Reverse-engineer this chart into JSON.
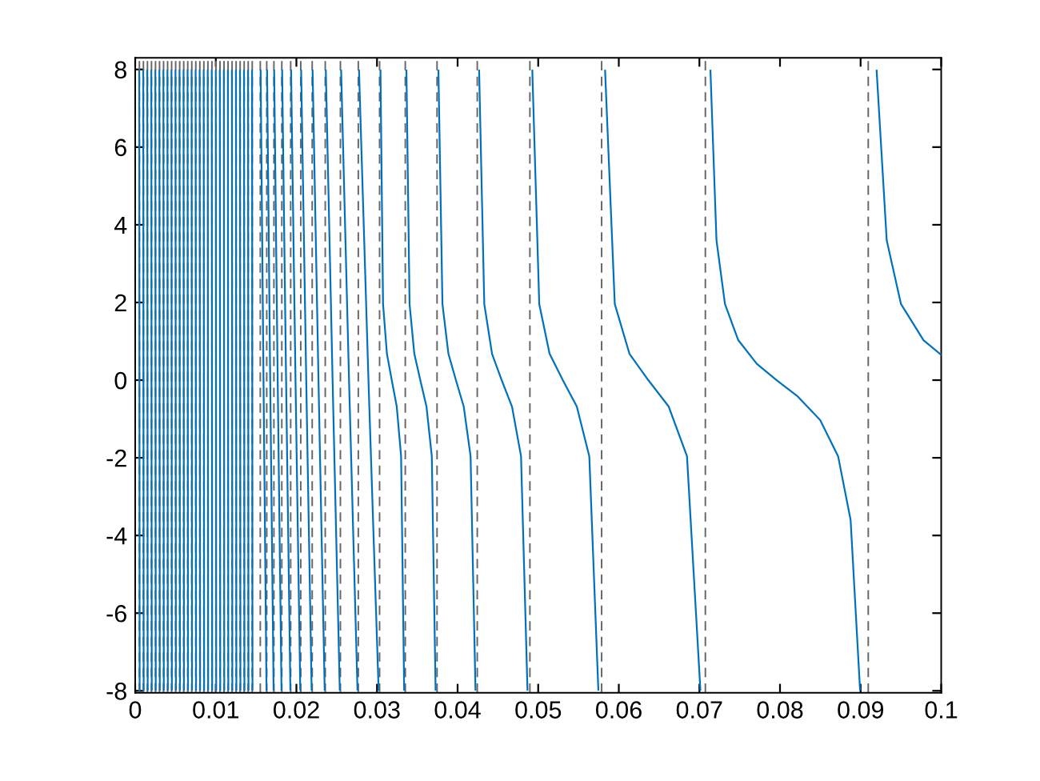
{
  "chart_data": {
    "type": "line",
    "x": [
      0.0005,
      0.00055,
      null,
      0.001,
      0.00105,
      null,
      0.0015,
      0.00155,
      null,
      0.002,
      0.00205,
      null,
      0.0025,
      0.00255,
      null,
      0.003,
      0.00305,
      null,
      0.0035,
      0.00355,
      null,
      0.004,
      0.00405,
      null,
      0.0045,
      0.00455,
      null,
      0.005,
      0.00505,
      null,
      0.0055,
      0.00555,
      null,
      0.006,
      0.00605,
      null,
      0.0065,
      0.00655,
      null,
      0.007,
      0.00705,
      null,
      0.0075,
      0.00755,
      null,
      0.008,
      0.00805,
      null,
      0.0085,
      0.00855,
      null,
      0.009,
      0.00905,
      null,
      0.0095,
      0.00955,
      null,
      0.01,
      0.01005,
      null,
      0.0105,
      0.01055,
      null,
      0.011,
      0.01105,
      null,
      0.0115,
      0.01155,
      null,
      0.012,
      0.01205,
      null,
      0.0125,
      0.01255,
      null,
      0.013,
      0.01305,
      null,
      0.0135,
      0.01355,
      null,
      0.014,
      0.01405,
      null,
      0.0145,
      0.01455,
      null,
      0.01556,
      0.01592,
      0.01629,
      null,
      0.01636,
      0.01675,
      0.01717,
      null,
      0.01724,
      0.01768,
      0.01815,
      null,
      0.01823,
      0.01872,
      0.01925,
      null,
      0.01934,
      0.01989,
      0.02048,
      null,
      0.02059,
      0.02122,
      0.02189,
      null,
      0.02201,
      0.02274,
      0.02351,
      null,
      0.02365,
      0.02449,
      0.02538,
      null,
      0.02555,
      0.02653,
      0.02758,
      null,
      0.02777,
      0.02894,
      0.0302,
      null,
      0.03043,
      0.03075,
      0.03123,
      0.03183,
      0.03245,
      0.03299,
      0.03337,
      null,
      0.03365,
      0.03404,
      0.03463,
      0.03537,
      0.03614,
      0.0368,
      0.03727,
      null,
      0.03762,
      0.03812,
      0.03886,
      0.03979,
      0.04076,
      0.04161,
      0.04222,
      null,
      0.04267,
      0.04331,
      0.04427,
      0.04547,
      0.04675,
      0.04787,
      0.04867,
      null,
      0.04927,
      0.05013,
      0.05141,
      0.05305,
      0.05479,
      0.05634,
      0.05746,
      null,
      0.0583,
      0.0595,
      0.06132,
      0.06366,
      0.06619,
      0.06846,
      0.07012,
      null,
      0.07137,
      0.07212,
      0.07317,
      0.07482,
      0.07712,
      0.07958,
      0.0822,
      0.08499,
      0.08721,
      0.08876,
      0.08993,
      null,
      0.09199,
      0.09324,
      0.09501,
      0.0978,
      0.1
    ],
    "values": [
      7.97,
      -7.97,
      null,
      7.97,
      -7.97,
      null,
      7.97,
      -7.97,
      null,
      7.97,
      -7.97,
      null,
      7.97,
      -7.97,
      null,
      7.97,
      -7.97,
      null,
      7.97,
      -7.97,
      null,
      7.97,
      -7.97,
      null,
      7.97,
      -7.97,
      null,
      7.97,
      -7.97,
      null,
      7.97,
      -7.97,
      null,
      7.97,
      -7.97,
      null,
      7.97,
      -7.97,
      null,
      7.97,
      -7.97,
      null,
      7.97,
      -7.97,
      null,
      7.97,
      -7.97,
      null,
      7.97,
      -7.97,
      null,
      7.97,
      -7.97,
      null,
      7.97,
      -7.97,
      null,
      7.97,
      -7.97,
      null,
      7.97,
      -7.97,
      null,
      7.97,
      -7.97,
      null,
      7.97,
      -7.97,
      null,
      7.97,
      -7.97,
      null,
      7.97,
      -7.97,
      null,
      7.97,
      -7.97,
      null,
      7.97,
      -7.97,
      null,
      7.97,
      -7.97,
      null,
      7.97,
      -7.97,
      null,
      7.97,
      0,
      -7.97,
      null,
      7.97,
      0,
      -7.97,
      null,
      7.97,
      0,
      -7.97,
      null,
      7.97,
      0,
      -7.97,
      null,
      7.97,
      0,
      -7.97,
      null,
      7.97,
      0,
      -7.97,
      null,
      7.97,
      0,
      -7.97,
      null,
      7.97,
      0,
      -7.97,
      null,
      7.97,
      0,
      -7.97,
      null,
      7.97,
      0,
      -7.97,
      null,
      7.97,
      1.96,
      0.68,
      0,
      -0.68,
      -1.96,
      -7.97,
      null,
      7.97,
      1.96,
      0.68,
      0,
      -0.68,
      -1.96,
      -7.97,
      null,
      7.97,
      1.96,
      0.68,
      0,
      -0.68,
      -1.96,
      -7.97,
      null,
      7.97,
      1.96,
      0.68,
      0,
      -0.68,
      -1.96,
      -7.97,
      null,
      7.97,
      1.96,
      0.68,
      0,
      -0.68,
      -1.96,
      -7.97,
      null,
      7.97,
      1.96,
      0.68,
      0,
      -0.68,
      -1.96,
      -7.97,
      null,
      7.97,
      3.6,
      1.96,
      1.03,
      0.42,
      0,
      -0.42,
      -1.03,
      -1.96,
      -3.6,
      -7.97,
      null,
      7.97,
      3.6,
      1.96,
      1.03,
      0.65
    ],
    "color": "#0072bd",
    "line_style": "solid",
    "ref_lines": [
      {
        "axis": "x",
        "value": 0.00052,
        "color": "#666666",
        "line_style": "dashed"
      },
      {
        "axis": "x",
        "value": 0.00102,
        "color": "#666666",
        "line_style": "dashed"
      },
      {
        "axis": "x",
        "value": 0.00152,
        "color": "#666666",
        "line_style": "dashed"
      },
      {
        "axis": "x",
        "value": 0.00202,
        "color": "#666666",
        "line_style": "dashed"
      },
      {
        "axis": "x",
        "value": 0.00252,
        "color": "#666666",
        "line_style": "dashed"
      },
      {
        "axis": "x",
        "value": 0.00302,
        "color": "#666666",
        "line_style": "dashed"
      },
      {
        "axis": "x",
        "value": 0.00352,
        "color": "#666666",
        "line_style": "dashed"
      },
      {
        "axis": "x",
        "value": 0.00402,
        "color": "#666666",
        "line_style": "dashed"
      },
      {
        "axis": "x",
        "value": 0.00452,
        "color": "#666666",
        "line_style": "dashed"
      },
      {
        "axis": "x",
        "value": 0.00502,
        "color": "#666666",
        "line_style": "dashed"
      },
      {
        "axis": "x",
        "value": 0.00552,
        "color": "#666666",
        "line_style": "dashed"
      },
      {
        "axis": "x",
        "value": 0.00602,
        "color": "#666666",
        "line_style": "dashed"
      },
      {
        "axis": "x",
        "value": 0.00652,
        "color": "#666666",
        "line_style": "dashed"
      },
      {
        "axis": "x",
        "value": 0.00702,
        "color": "#666666",
        "line_style": "dashed"
      },
      {
        "axis": "x",
        "value": 0.00752,
        "color": "#666666",
        "line_style": "dashed"
      },
      {
        "axis": "x",
        "value": 0.00802,
        "color": "#666666",
        "line_style": "dashed"
      },
      {
        "axis": "x",
        "value": 0.00852,
        "color": "#666666",
        "line_style": "dashed"
      },
      {
        "axis": "x",
        "value": 0.00902,
        "color": "#666666",
        "line_style": "dashed"
      },
      {
        "axis": "x",
        "value": 0.00952,
        "color": "#666666",
        "line_style": "dashed"
      },
      {
        "axis": "x",
        "value": 0.01002,
        "color": "#666666",
        "line_style": "dashed"
      },
      {
        "axis": "x",
        "value": 0.01052,
        "color": "#666666",
        "line_style": "dashed"
      },
      {
        "axis": "x",
        "value": 0.01102,
        "color": "#666666",
        "line_style": "dashed"
      },
      {
        "axis": "x",
        "value": 0.01152,
        "color": "#666666",
        "line_style": "dashed"
      },
      {
        "axis": "x",
        "value": 0.01202,
        "color": "#666666",
        "line_style": "dashed"
      },
      {
        "axis": "x",
        "value": 0.01252,
        "color": "#666666",
        "line_style": "dashed"
      },
      {
        "axis": "x",
        "value": 0.01302,
        "color": "#666666",
        "line_style": "dashed"
      },
      {
        "axis": "x",
        "value": 0.01352,
        "color": "#666666",
        "line_style": "dashed"
      },
      {
        "axis": "x",
        "value": 0.01402,
        "color": "#666666",
        "line_style": "dashed"
      },
      {
        "axis": "x",
        "value": 0.01452,
        "color": "#666666",
        "line_style": "dashed"
      },
      {
        "axis": "x",
        "value": 0.01552,
        "color": "#666666",
        "line_style": "dashed"
      },
      {
        "axis": "x",
        "value": 0.01632,
        "color": "#666666",
        "line_style": "dashed"
      },
      {
        "axis": "x",
        "value": 0.01721,
        "color": "#666666",
        "line_style": "dashed"
      },
      {
        "axis": "x",
        "value": 0.01819,
        "color": "#666666",
        "line_style": "dashed"
      },
      {
        "axis": "x",
        "value": 0.01929,
        "color": "#666666",
        "line_style": "dashed"
      },
      {
        "axis": "x",
        "value": 0.02054,
        "color": "#666666",
        "line_style": "dashed"
      },
      {
        "axis": "x",
        "value": 0.02196,
        "color": "#666666",
        "line_style": "dashed"
      },
      {
        "axis": "x",
        "value": 0.02358,
        "color": "#666666",
        "line_style": "dashed"
      },
      {
        "axis": "x",
        "value": 0.02546,
        "color": "#666666",
        "line_style": "dashed"
      },
      {
        "axis": "x",
        "value": 0.02768,
        "color": "#666666",
        "line_style": "dashed"
      },
      {
        "axis": "x",
        "value": 0.03032,
        "color": "#666666",
        "line_style": "dashed"
      },
      {
        "axis": "x",
        "value": 0.03351,
        "color": "#666666",
        "line_style": "dashed"
      },
      {
        "axis": "x",
        "value": 0.03745,
        "color": "#666666",
        "line_style": "dashed"
      },
      {
        "axis": "x",
        "value": 0.04244,
        "color": "#666666",
        "line_style": "dashed"
      },
      {
        "axis": "x",
        "value": 0.04897,
        "color": "#666666",
        "line_style": "dashed"
      },
      {
        "axis": "x",
        "value": 0.05787,
        "color": "#666666",
        "line_style": "dashed"
      },
      {
        "axis": "x",
        "value": 0.07074,
        "color": "#666666",
        "line_style": "dashed"
      },
      {
        "axis": "x",
        "value": 0.09095,
        "color": "#666666",
        "line_style": "dashed"
      }
    ],
    "xlim": [
      0,
      0.1
    ],
    "ylim": [
      -8.05,
      8.3
    ],
    "xticks": [
      0,
      0.01,
      0.02,
      0.03,
      0.04,
      0.05,
      0.06,
      0.07,
      0.08,
      0.09,
      0.1
    ],
    "yticks": [
      -8,
      -6,
      -4,
      -2,
      0,
      2,
      4,
      6,
      8
    ],
    "grid": false,
    "legend": false
  }
}
